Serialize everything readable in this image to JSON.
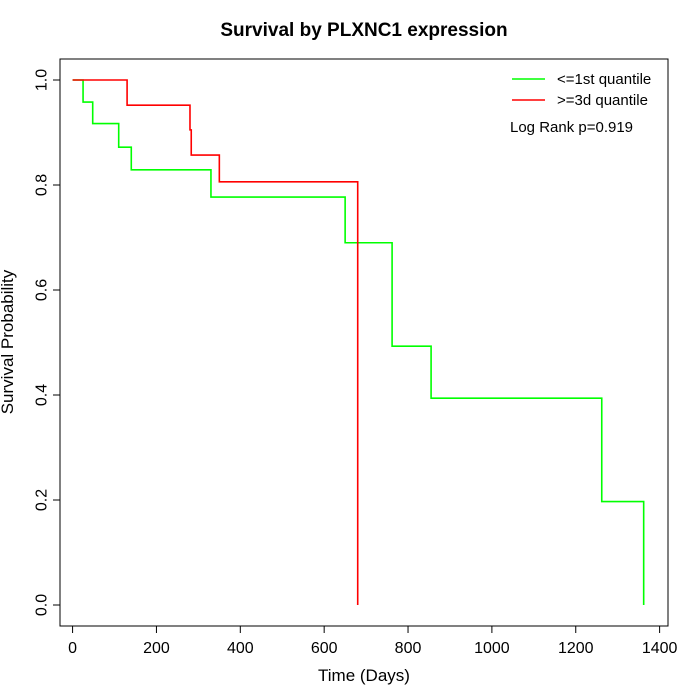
{
  "chart_data": {
    "type": "line",
    "title": "Survival by PLXNC1 expression",
    "xlabel": "Time (Days)",
    "ylabel": "Survival Probability",
    "xlim": [
      -30,
      1420
    ],
    "ylim": [
      -0.04,
      1.04
    ],
    "x_ticks": [
      0,
      200,
      400,
      600,
      800,
      1000,
      1200,
      1400
    ],
    "y_ticks": [
      0.0,
      0.2,
      0.4,
      0.6,
      0.8,
      1.0
    ],
    "x_tick_labels": [
      "0",
      "200",
      "400",
      "600",
      "800",
      "1000",
      "1200",
      "1400"
    ],
    "y_tick_labels": [
      "0.0",
      "0.2",
      "0.4",
      "0.6",
      "0.8",
      "1.0"
    ],
    "grid": false,
    "legend_position": "top-right",
    "annotation": "Log Rank p=0.919",
    "series": [
      {
        "name": "<=1st quantile",
        "color": "#00ff00",
        "step": true,
        "x": [
          0,
          25,
          48,
          110,
          140,
          330,
          650,
          762,
          855,
          1262,
          1362,
          1362
        ],
        "y": [
          1.0,
          0.958,
          0.917,
          0.872,
          0.829,
          0.777,
          0.69,
          0.493,
          0.394,
          0.197,
          0.197,
          0.0
        ]
      },
      {
        "name": ">=3d quantile",
        "color": "#ff0000",
        "step": true,
        "x": [
          0,
          130,
          280,
          283,
          350,
          680,
          680
        ],
        "y": [
          1.0,
          0.952,
          0.905,
          0.857,
          0.806,
          0.806,
          0.0
        ]
      }
    ]
  }
}
